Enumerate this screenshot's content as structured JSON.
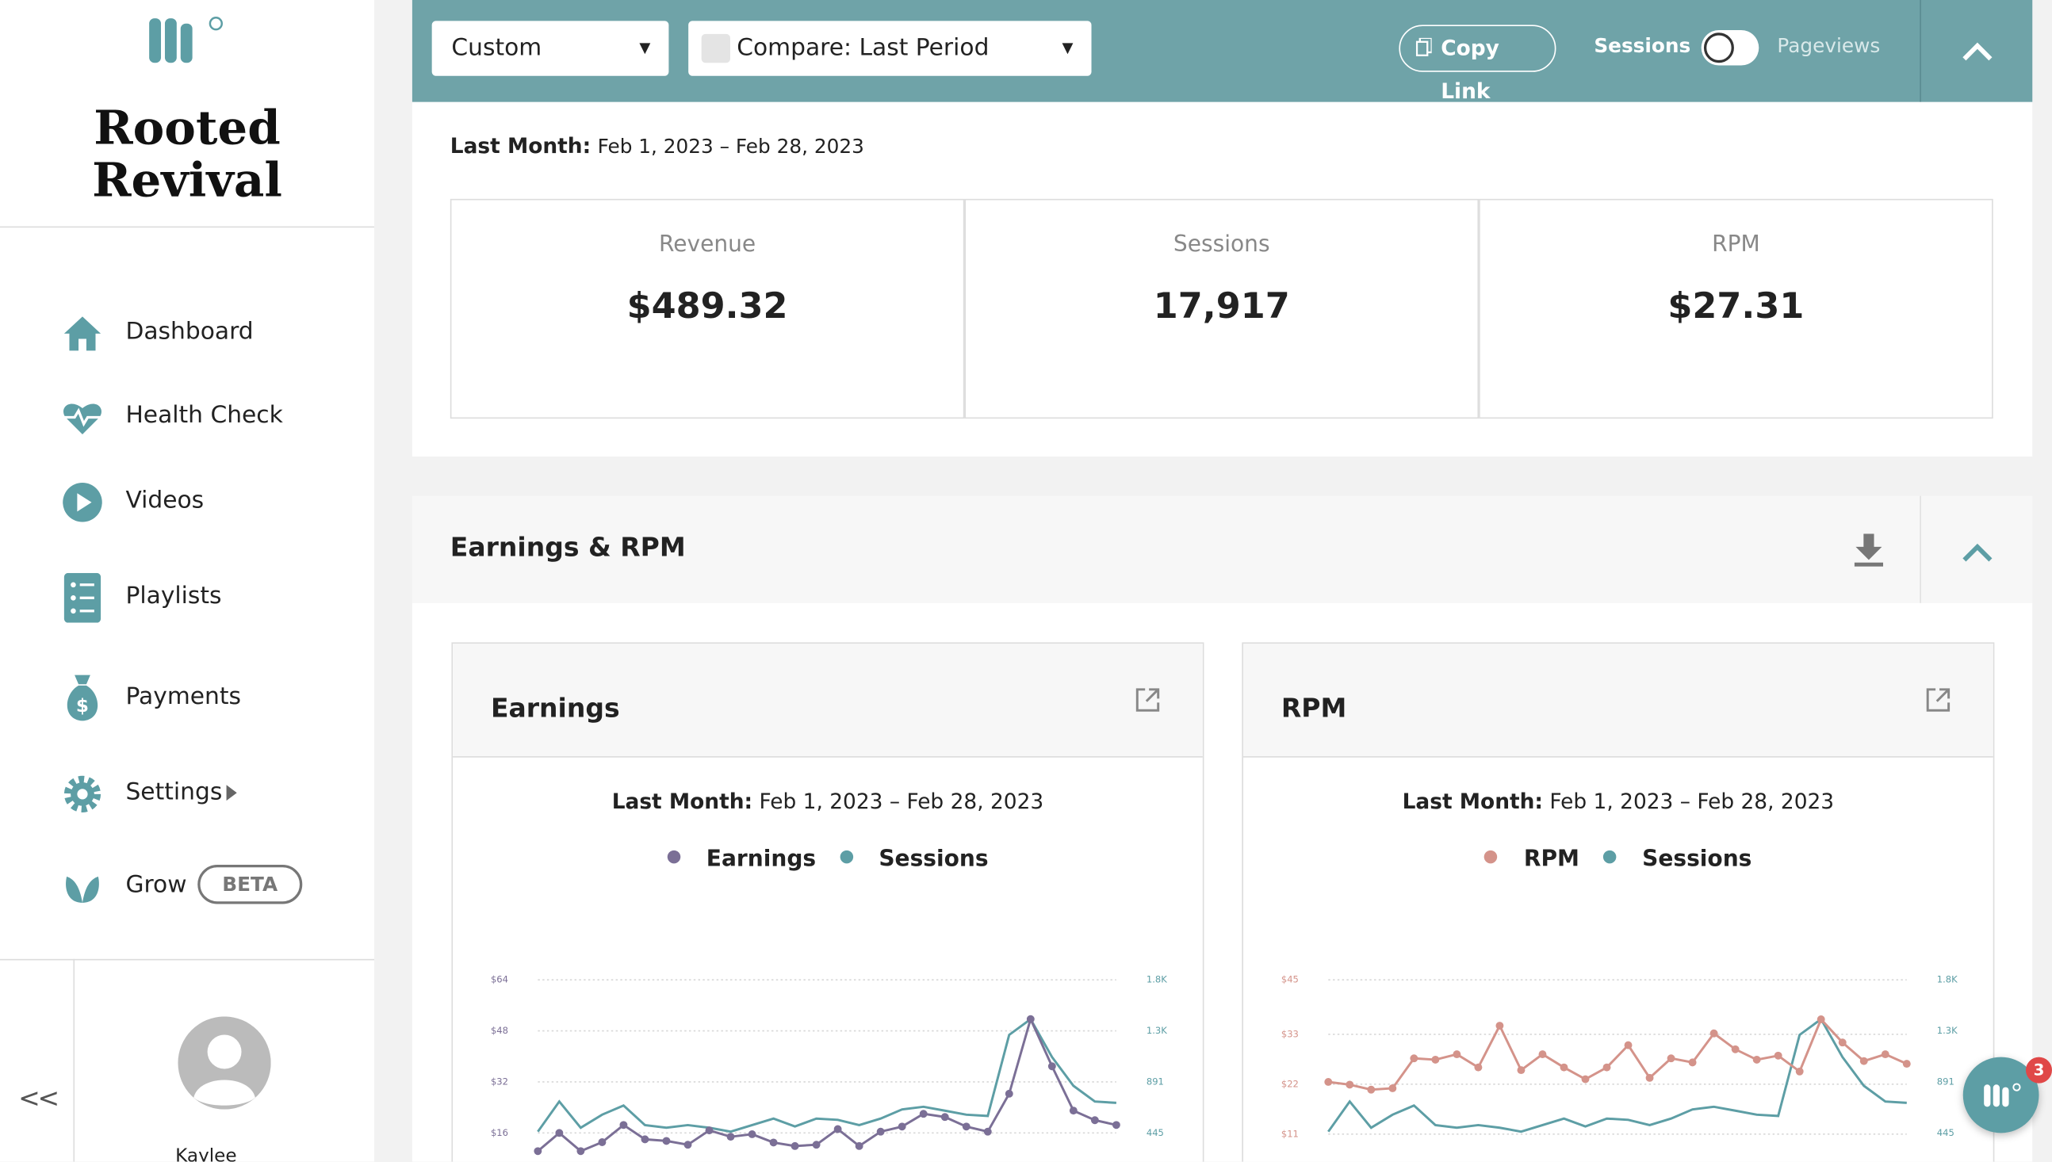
{
  "sidebar": {
    "brand": "Rooted Revival",
    "nav": [
      "Dashboard",
      "Health Check",
      "Videos",
      "Playlists",
      "Payments",
      "Settings",
      "Grow"
    ],
    "badge": "BETA",
    "collapse": "<<",
    "user": "Kaylee"
  },
  "toolbar": {
    "range": "Custom",
    "compare": "Compare: Last Period",
    "copy": "Copy Link",
    "toggle_left": "Sessions",
    "toggle_right": "Pageviews"
  },
  "summary": {
    "label": "Last Month:",
    "dates": "Feb 1, 2023 – Feb 28, 2023",
    "metrics": [
      {
        "label": "Revenue",
        "value": "$489.32"
      },
      {
        "label": "Sessions",
        "value": "17,917"
      },
      {
        "label": "RPM",
        "value": "$27.31"
      }
    ]
  },
  "section": {
    "title": "Earnings & RPM"
  },
  "chat": {
    "badge": "3"
  },
  "chart_data": [
    {
      "type": "line",
      "title": "Earnings",
      "subtitle_label": "Last Month:",
      "subtitle": "Feb 1, 2023 – Feb 28, 2023",
      "ylim": [
        0,
        64
      ],
      "yticks": [
        {
          "value": 16,
          "label": "$16"
        },
        {
          "value": 32,
          "label": "$32"
        },
        {
          "value": 48,
          "label": "$48"
        },
        {
          "value": 64,
          "label": "$64"
        }
      ],
      "y2lim": [
        0,
        1782
      ],
      "y2ticks": [
        445,
        891,
        {
          "value": 1336,
          "label": "1.3K"
        },
        {
          "value": 1782,
          "label": "1.8K"
        }
      ],
      "grid": true,
      "series": [
        {
          "name": "Earnings",
          "color": "#7b6f96",
          "markers": true,
          "values": [
            10.3,
            16,
            10.3,
            13.1,
            18.5,
            14,
            13.5,
            12.3,
            16.8,
            14.8,
            15.6,
            13,
            11.9,
            12.3,
            17.2,
            11.9,
            16.4,
            18,
            22,
            21,
            18,
            16.4,
            28.3,
            51.7,
            36.9,
            23,
            20,
            18.5
          ]
        },
        {
          "name": "Sessions",
          "color": "#5d9ea5",
          "axis": "y2",
          "values": [
            457,
            720,
            491,
            605,
            685,
            514,
            491,
            514,
            491,
            457,
            514,
            571,
            502,
            571,
            560,
            514,
            571,
            651,
            674,
            640,
            605,
            594,
            1302,
            1439,
            1108,
            857,
            720,
            708
          ]
        }
      ]
    },
    {
      "type": "line",
      "title": "RPM",
      "subtitle_label": "Last Month:",
      "subtitle": "Feb 1, 2023 – Feb 28, 2023",
      "ylim": [
        0,
        45
      ],
      "yticks": [
        {
          "value": 11,
          "label": "$11"
        },
        {
          "value": 22,
          "label": "$22"
        },
        {
          "value": 33,
          "label": "$33"
        },
        {
          "value": 45,
          "label": "$45"
        }
      ],
      "y2lim": [
        0,
        1782
      ],
      "y2ticks": [
        445,
        891,
        {
          "value": 1336,
          "label": "1.3K"
        },
        {
          "value": 1782,
          "label": "1.8K"
        }
      ],
      "grid": true,
      "series": [
        {
          "name": "RPM",
          "color": "#d4938a",
          "markers": true,
          "values": [
            22.5,
            21.9,
            20.8,
            21.1,
            27.7,
            27.4,
            28.6,
            25.7,
            34.9,
            25.1,
            28.6,
            25.7,
            23.1,
            25.7,
            30.6,
            23.4,
            27.7,
            26.8,
            33.2,
            29.7,
            27.4,
            28.3,
            24.8,
            36.3,
            31.2,
            27.1,
            28.6,
            26.5
          ]
        },
        {
          "name": "Sessions",
          "color": "#5d9ea5",
          "axis": "y2",
          "values": [
            457,
            720,
            491,
            605,
            685,
            514,
            491,
            514,
            491,
            457,
            514,
            571,
            502,
            571,
            560,
            514,
            571,
            651,
            674,
            640,
            605,
            594,
            1302,
            1439,
            1108,
            857,
            720,
            708
          ]
        }
      ]
    }
  ]
}
